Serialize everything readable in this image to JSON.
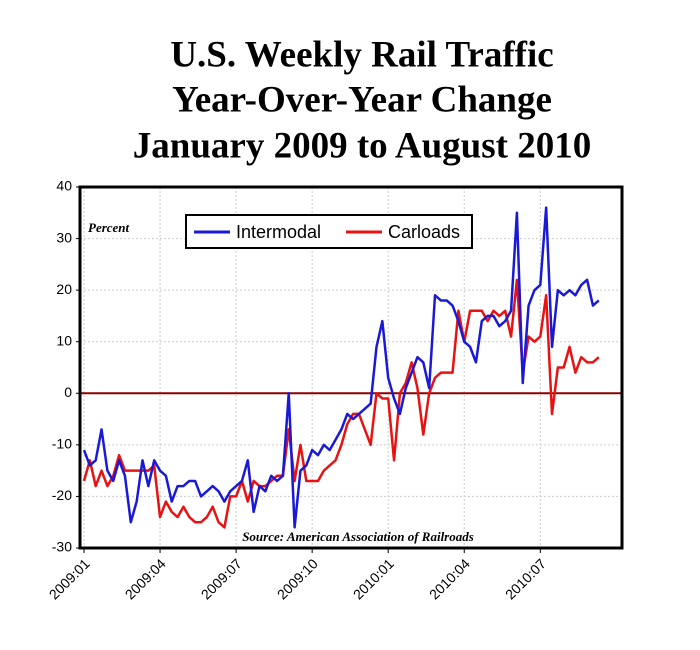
{
  "chart_data": {
    "type": "line",
    "title": [
      "U.S. Weekly Rail Traffic",
      "Year-Over-Year Change",
      "January 2009 to August 2010"
    ],
    "annotations": [
      "Percent",
      "Source: American Association of Railroads"
    ],
    "categories": [
      "2009:01",
      null,
      null,
      null,
      null,
      null,
      null,
      null,
      null,
      null,
      null,
      null,
      null,
      "2009:04",
      null,
      null,
      null,
      null,
      null,
      null,
      null,
      null,
      null,
      null,
      null,
      null,
      "2009:07",
      null,
      null,
      null,
      null,
      null,
      null,
      null,
      null,
      null,
      null,
      null,
      null,
      "2009:10",
      null,
      null,
      null,
      null,
      null,
      null,
      null,
      null,
      null,
      null,
      null,
      null,
      "2010:01",
      null,
      null,
      null,
      null,
      null,
      null,
      null,
      null,
      null,
      null,
      null,
      null,
      "2010:04",
      null,
      null,
      null,
      null,
      null,
      null,
      null,
      null,
      null,
      null,
      null,
      null,
      "2010:07",
      null,
      null,
      null,
      null,
      null,
      null,
      null,
      null,
      null,
      null
    ],
    "series": [
      {
        "name": "Intermodal",
        "color": "#1a1ad6",
        "values": [
          -11,
          -14,
          -13,
          -7,
          -15,
          -17,
          -13,
          -16,
          -25,
          -21,
          -13,
          -18,
          -13,
          -15,
          -16,
          -21,
          -18,
          -18,
          -17,
          -17,
          -20,
          -19,
          -18,
          -19,
          -21,
          -19,
          -18,
          -17,
          -13,
          -23,
          -18,
          -19,
          -16,
          -17,
          -16,
          0,
          -26,
          -15,
          -14,
          -11,
          -12,
          -10,
          -11,
          -9,
          -7,
          -4,
          -5,
          -4,
          -3,
          -2,
          9,
          14,
          3,
          -1,
          -4,
          1,
          4,
          7,
          6,
          1,
          19,
          18,
          18,
          17,
          14,
          10,
          9,
          6,
          14,
          15,
          15,
          13,
          14,
          16,
          35,
          2,
          17,
          20,
          21,
          36,
          9,
          20,
          19,
          20,
          19,
          21,
          22,
          17,
          18
        ]
      },
      {
        "name": "Carloads",
        "color": "#e81212",
        "values": [
          -17,
          -13,
          -18,
          -15,
          -18,
          -16,
          -12,
          -15,
          -15,
          -15,
          -15,
          -15,
          -14,
          -24,
          -21,
          -23,
          -24,
          -22,
          -24,
          -25,
          -25,
          -24,
          -22,
          -25,
          -26,
          -20,
          -20,
          -17,
          -21,
          -17,
          -18,
          -18,
          -17,
          -16,
          -16,
          -7,
          -17,
          -10,
          -17,
          -17,
          -17,
          -15,
          -14,
          -13,
          -10,
          -6,
          -4,
          -4,
          -7,
          -10,
          0,
          -1,
          -1,
          -13,
          0,
          2,
          6,
          1,
          -8,
          0,
          3,
          4,
          4,
          4,
          16,
          10,
          16,
          16,
          16,
          14,
          16,
          15,
          16,
          11,
          22,
          4,
          11,
          10,
          11,
          19,
          -4,
          5,
          5,
          9,
          4,
          7,
          6,
          6,
          7
        ]
      }
    ],
    "ylim": [
      -30,
      40
    ],
    "yticks": [
      -30,
      -20,
      -10,
      0,
      10,
      20,
      30,
      40
    ],
    "reference_line": {
      "value": 0,
      "color": "#8b0000"
    },
    "grid": true
  }
}
